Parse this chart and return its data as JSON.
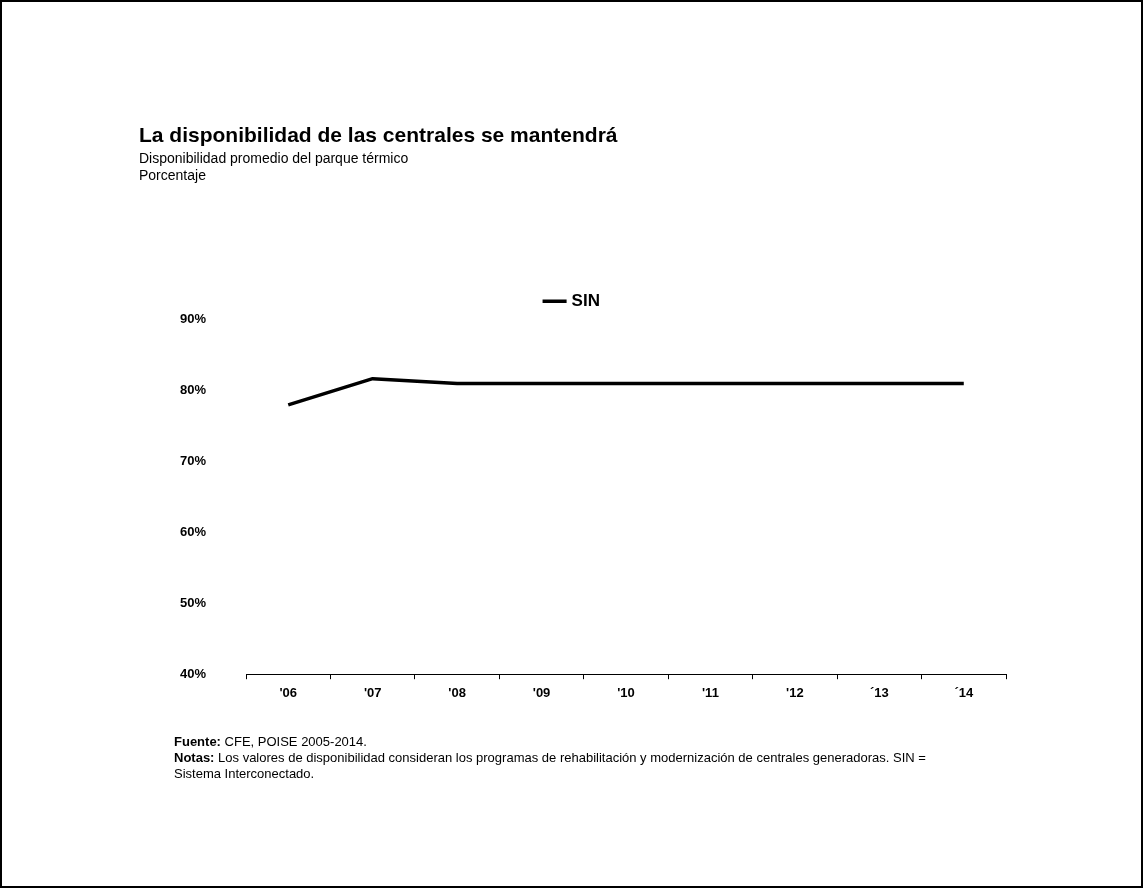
{
  "chart_data": {
    "type": "line",
    "title": "La disponibilidad de las centrales se mantendrá",
    "subtitle": "Disponibilidad promedio del parque térmico\nPorcentaje",
    "categories": [
      "'06",
      "'07",
      "'08",
      "'09",
      "'10",
      "'11",
      "'12",
      "´13",
      "´14"
    ],
    "series": [
      {
        "name": "SIN",
        "color": "#000000",
        "values": [
          78,
          81.7,
          81,
          81,
          81,
          81,
          81,
          81,
          81
        ]
      }
    ],
    "ylim": [
      40,
      90
    ],
    "yticks": [
      {
        "value": 40,
        "label": "40%"
      },
      {
        "value": 50,
        "label": "50%"
      },
      {
        "value": 60,
        "label": "60%"
      },
      {
        "value": 70,
        "label": "70%"
      },
      {
        "value": 80,
        "label": "80%"
      },
      {
        "value": 90,
        "label": "90%"
      }
    ],
    "grid": false,
    "legend": "top",
    "marker": "none",
    "line_style": "solid",
    "annotations": [
      "Fuente: CFE, POISE 2005-2014.",
      "Notas: Los valores de disponibilidad consideran los programas de rehabilitación y modernización de centrales generadoras.  SIN = Sistema Interconectado."
    ]
  }
}
